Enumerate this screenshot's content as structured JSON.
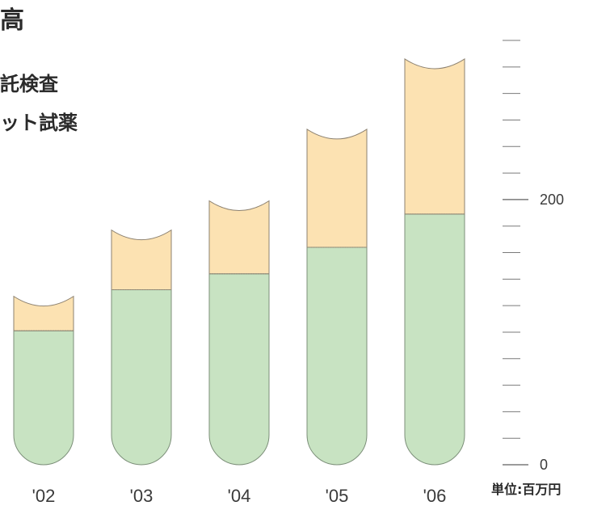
{
  "page": {
    "title_fragment": "高",
    "legend": [
      {
        "label": "託検査",
        "color": "#fce2b2"
      },
      {
        "label": "ット試薬",
        "color": "#c8e3c2"
      }
    ],
    "unit_label": "単位:百万円"
  },
  "chart_data": {
    "type": "bar",
    "stacked": true,
    "categories": [
      "'02",
      "'03",
      "'04",
      "'05",
      "'06"
    ],
    "series": [
      {
        "values": [
          101,
          132,
          144,
          164,
          189
        ],
        "color": "#c8e3c2"
      },
      {
        "values": [
          26,
          45,
          55,
          89,
          117
        ],
        "color": "#fce2b2"
      }
    ],
    "y_ticks": [
      0,
      200
    ],
    "ylim": [
      0,
      320
    ],
    "grid": false,
    "legend_position": "top-left",
    "bar_shape": "test-tube"
  }
}
